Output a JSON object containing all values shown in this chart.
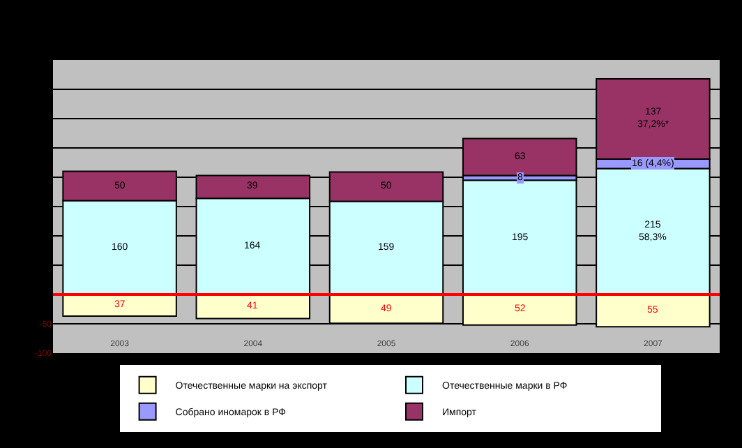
{
  "chart_data": {
    "type": "bar",
    "categories": [
      "2003",
      "2004",
      "2005",
      "2006",
      "2007"
    ],
    "series": [
      {
        "name": "Отечественные марки на экспорт",
        "color": "#ffffcc",
        "values": [
          37,
          41,
          49,
          52,
          55
        ],
        "base": [
          -37,
          -41,
          -49,
          -52,
          -55
        ],
        "value_labels": [
          "37",
          "41",
          "49",
          "52",
          "55"
        ]
      },
      {
        "name": "Отечественные марки в РФ",
        "color": "#ccffff",
        "values": [
          160,
          164,
          159,
          195,
          215
        ],
        "base": [
          0,
          0,
          0,
          0,
          0
        ],
        "value_labels": [
          "160",
          "164",
          "159",
          "195",
          "215\n58,3%"
        ]
      },
      {
        "name": "Собрано иномарок в РФ",
        "color": "#9999ff",
        "values": [
          null,
          null,
          null,
          8,
          16
        ],
        "base": [
          null,
          null,
          null,
          195,
          215
        ],
        "value_labels": [
          null,
          null,
          null,
          "8",
          "16 (4,4%)"
        ]
      },
      {
        "name": "Импорт",
        "color": "#993366",
        "values": [
          50,
          39,
          50,
          63,
          137
        ],
        "base": [
          160,
          164,
          159,
          203,
          231
        ],
        "value_labels": [
          "50",
          "39",
          "50",
          "63",
          "137\n37,2%*"
        ]
      }
    ],
    "ylim": [
      -100,
      400
    ],
    "yticks": [
      {
        "value": -100,
        "label": "-100"
      },
      {
        "value": -50,
        "label": "-50"
      },
      {
        "value": 0,
        "label": null
      },
      {
        "value": 50,
        "label": null
      },
      {
        "value": 100,
        "label": null
      },
      {
        "value": 150,
        "label": null
      },
      {
        "value": 200,
        "label": null
      },
      {
        "value": 250,
        "label": null
      },
      {
        "value": 300,
        "label": null
      },
      {
        "value": 350,
        "label": null
      }
    ],
    "ref_lines": [
      {
        "axis": "y",
        "value": 0,
        "label": null,
        "color": "#ff0000"
      }
    ],
    "grid": "y",
    "legend": "bottom"
  }
}
